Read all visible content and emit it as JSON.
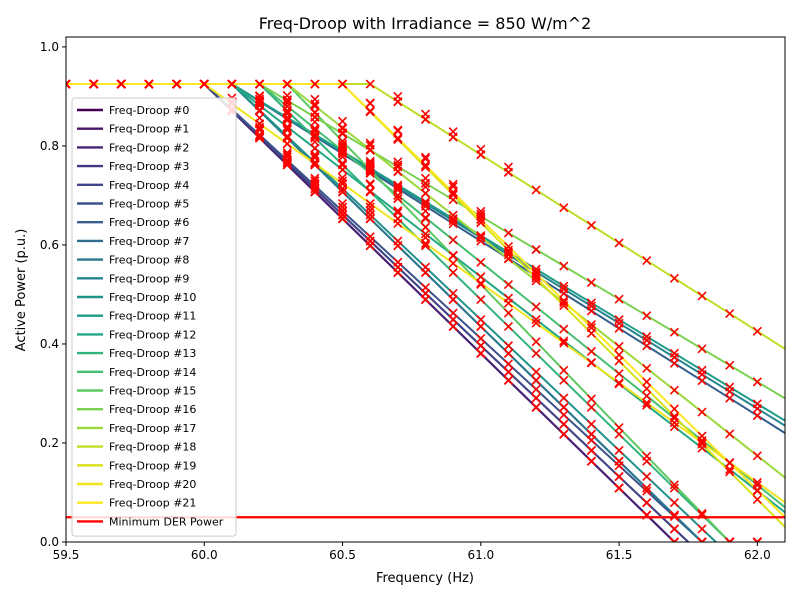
{
  "chart_data": {
    "type": "line",
    "title": "Freq-Droop with Irradiance = 850 W/m^2",
    "xlabel": "Frequency (Hz)",
    "ylabel": "Active Power (p.u.)",
    "xlim": [
      59.5,
      62.1
    ],
    "ylim": [
      0.0,
      1.02
    ],
    "xticks": [
      59.5,
      60.0,
      60.5,
      61.0,
      61.5,
      62.0
    ],
    "xtick_labels": [
      "59.5",
      "60.0",
      "60.5",
      "61.0",
      "61.5",
      "62.0"
    ],
    "yticks": [
      0.0,
      0.2,
      0.4,
      0.6,
      0.8,
      1.0
    ],
    "ytick_labels": [
      "0.0",
      "0.2",
      "0.4",
      "0.6",
      "0.8",
      "1.0"
    ],
    "max_power": 0.925,
    "legend_position": "left",
    "marker": "x",
    "marker_color": "#ff0000",
    "series": [
      {
        "name": "Freq-Droop #0",
        "color": "#440154",
        "knee": 60.0,
        "end_x": 61.7,
        "end_y": 0.0
      },
      {
        "name": "Freq-Droop #1",
        "color": "#471365",
        "knee": 60.0,
        "end_x": 61.7,
        "end_y": 0.0
      },
      {
        "name": "Freq-Droop #2",
        "color": "#482475",
        "knee": 60.0,
        "end_x": 61.7,
        "end_y": 0.0
      },
      {
        "name": "Freq-Droop #3",
        "color": "#463480",
        "knee": 60.0,
        "end_x": 61.75,
        "end_y": 0.0
      },
      {
        "name": "Freq-Droop #4",
        "color": "#414487",
        "knee": 60.0,
        "end_x": 61.75,
        "end_y": 0.0
      },
      {
        "name": "Freq-Droop #5",
        "color": "#3b528b",
        "knee": 60.0,
        "end_x": 61.8,
        "end_y": 0.0
      },
      {
        "name": "Freq-Droop #6",
        "color": "#355f8d",
        "knee": 60.1,
        "end_x": 62.1,
        "end_y": 0.22
      },
      {
        "name": "Freq-Droop #7",
        "color": "#2f6c8e",
        "knee": 60.1,
        "end_x": 61.8,
        "end_y": 0.0
      },
      {
        "name": "Freq-Droop #8",
        "color": "#2a788e",
        "knee": 60.1,
        "end_x": 61.8,
        "end_y": 0.0
      },
      {
        "name": "Freq-Droop #9",
        "color": "#25848e",
        "knee": 60.1,
        "end_x": 62.1,
        "end_y": 0.235
      },
      {
        "name": "Freq-Droop #10",
        "color": "#21918c",
        "knee": 60.1,
        "end_x": 61.85,
        "end_y": 0.0
      },
      {
        "name": "Freq-Droop #11",
        "color": "#1e9c89",
        "knee": 60.1,
        "end_x": 62.1,
        "end_y": 0.245
      },
      {
        "name": "Freq-Droop #12",
        "color": "#22a884",
        "knee": 60.1,
        "end_x": 62.1,
        "end_y": 0.06
      },
      {
        "name": "Freq-Droop #13",
        "color": "#2fb47c",
        "knee": 60.2,
        "end_x": 61.9,
        "end_y": 0.0
      },
      {
        "name": "Freq-Droop #14",
        "color": "#44bf70",
        "knee": 60.2,
        "end_x": 62.1,
        "end_y": 0.07
      },
      {
        "name": "Freq-Droop #15",
        "color": "#5ec962",
        "knee": 60.3,
        "end_x": 61.9,
        "end_y": 0.0
      },
      {
        "name": "Freq-Droop #16",
        "color": "#7ad151",
        "knee": 60.2,
        "end_x": 62.1,
        "end_y": 0.29
      },
      {
        "name": "Freq-Droop #17",
        "color": "#9bd93c",
        "knee": 60.3,
        "end_x": 62.1,
        "end_y": 0.13
      },
      {
        "name": "Freq-Droop #18",
        "color": "#bddf26",
        "knee": 60.6,
        "end_x": 62.1,
        "end_y": 0.39
      },
      {
        "name": "Freq-Droop #19",
        "color": "#d8e219",
        "knee": 60.5,
        "end_x": 62.1,
        "end_y": 0.03
      },
      {
        "name": "Freq-Droop #20",
        "color": "#f1e51d",
        "knee": 60.0,
        "end_x": 62.1,
        "end_y": 0.08
      },
      {
        "name": "Freq-Droop #21",
        "color": "#fde725",
        "knee": 60.5,
        "end_x": 62.1,
        "end_y": 0.05
      }
    ],
    "threshold": {
      "name": "Minimum DER Power",
      "value": 0.05,
      "color": "#ff0000"
    }
  }
}
